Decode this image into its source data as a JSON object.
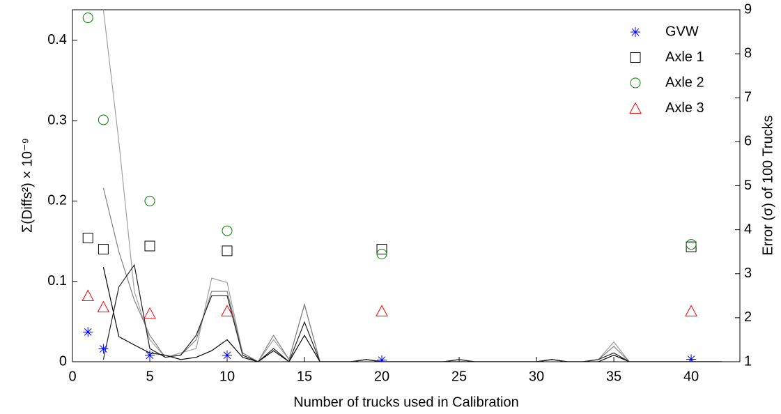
{
  "chart_data": {
    "type": "scatter-line",
    "xlabel": "Number of trucks used in Calibration",
    "ylabel": "Σ(Diffs²) × 10⁻⁹",
    "y2label": "Error (σ) of 100 Trucks",
    "xlim": [
      0,
      43.15
    ],
    "xticks": [
      0,
      5,
      10,
      15,
      20,
      25,
      30,
      35,
      40
    ],
    "ylim": [
      0,
      0.438
    ],
    "yticks": [
      0,
      0.1,
      0.2,
      0.3,
      0.4
    ],
    "y2lim": [
      1,
      9
    ],
    "y2ticks": [
      1,
      2,
      3,
      4,
      5,
      6,
      7,
      8,
      9
    ],
    "legend": "upper-right",
    "series": [
      {
        "name": "GVW",
        "color": "#0000ff",
        "marker": "asterisk",
        "x": [
          1,
          2,
          5,
          10,
          20,
          40
        ],
        "values": [
          0.037,
          0.016,
          0.008,
          0.008,
          0.002,
          0.003
        ]
      },
      {
        "name": "Axle 1",
        "color": "#000000",
        "marker": "square",
        "x": [
          1,
          2,
          5,
          10,
          20,
          40
        ],
        "values": [
          0.154,
          0.14,
          0.144,
          0.138,
          0.14,
          0.143
        ]
      },
      {
        "name": "Axle 2",
        "color": "#008000",
        "marker": "circle",
        "x": [
          1,
          2,
          5,
          10,
          20,
          40
        ],
        "values": [
          0.428,
          0.301,
          0.2,
          0.163,
          0.134,
          0.146
        ]
      },
      {
        "name": "Axle 3",
        "color": "#ff0000",
        "marker": "triangle",
        "x": [
          1,
          2,
          5,
          10,
          20,
          40
        ],
        "values": [
          0.082,
          0.068,
          0.06,
          0.063,
          0.063,
          0.063
        ]
      },
      {
        "color": "#a0a0a0",
        "axis": "y2",
        "x": [
          2,
          3,
          4,
          5,
          6,
          7,
          8,
          9,
          10,
          11,
          12,
          13,
          14,
          15,
          16,
          17,
          18,
          19,
          20,
          21,
          22,
          23,
          24,
          25,
          26,
          27,
          28,
          29,
          30,
          31,
          32,
          33,
          34,
          35,
          36,
          37,
          38,
          39,
          40,
          41,
          42
        ],
        "values": [
          9.0,
          6.0,
          2.6,
          1.5,
          1.1,
          1.2,
          1.3,
          2.9,
          2.8,
          1.2,
          1.0,
          1.5,
          1.05,
          2.3,
          1.0,
          1.0,
          1.0,
          1.05,
          1.0,
          1.0,
          1.0,
          1.0,
          1.0,
          1.05,
          1.0,
          1.0,
          1.0,
          1.0,
          1.0,
          1.05,
          1.0,
          1.0,
          1.05,
          1.45,
          1.0,
          1.0,
          1.0,
          1.0,
          1.0,
          1.0,
          1.0
        ]
      },
      {
        "color": "#808080",
        "axis": "y2",
        "x": [
          2,
          3,
          4,
          5,
          6,
          7,
          8,
          9,
          10,
          11,
          12,
          13,
          14,
          15,
          16,
          17,
          18,
          19,
          20,
          21,
          22,
          23,
          24,
          25,
          26,
          27,
          28,
          29,
          30,
          31,
          32,
          33,
          34,
          35,
          36,
          37,
          38,
          39,
          40,
          41,
          42
        ],
        "values": [
          4.95,
          3.5,
          2.4,
          1.6,
          1.1,
          1.15,
          1.5,
          2.6,
          2.6,
          1.2,
          1.0,
          1.6,
          1.05,
          2.3,
          1.0,
          1.0,
          1.0,
          1.05,
          1.0,
          1.0,
          1.0,
          1.0,
          1.0,
          1.05,
          1.0,
          1.0,
          1.0,
          1.0,
          1.0,
          1.05,
          1.0,
          1.0,
          1.05,
          1.35,
          1.0,
          1.0,
          1.0,
          1.0,
          1.0,
          1.0,
          1.0
        ]
      },
      {
        "color": "#000000",
        "axis": "y2",
        "x": [
          2,
          3,
          4,
          5,
          6,
          7,
          8,
          9,
          10,
          11,
          12,
          13,
          14,
          15,
          16,
          17,
          18,
          19,
          20,
          21,
          22,
          23,
          24,
          25,
          26,
          27,
          28,
          29,
          30,
          31,
          32,
          33,
          34,
          35,
          36,
          37,
          38,
          39,
          40,
          41,
          42
        ],
        "values": [
          3.15,
          1.57,
          1.38,
          1.2,
          1.15,
          1.05,
          1.1,
          1.25,
          1.5,
          1.1,
          1.0,
          1.25,
          1.0,
          1.6,
          1.0,
          1.0,
          1.0,
          1.05,
          1.0,
          1.0,
          1.0,
          1.0,
          1.0,
          1.0,
          1.0,
          1.0,
          1.0,
          1.0,
          1.0,
          1.05,
          1.0,
          1.0,
          1.0,
          1.15,
          1.0,
          1.0,
          1.0,
          1.0,
          1.0,
          1.0,
          1.0
        ]
      },
      {
        "color": "#202020",
        "axis": "y2",
        "x": [
          2,
          3,
          4,
          5,
          6,
          7,
          8,
          9,
          10,
          11,
          12,
          13,
          14,
          15,
          16,
          17,
          18,
          19,
          20,
          21,
          22,
          23,
          24,
          25,
          26,
          27,
          28,
          29,
          30,
          31,
          32,
          33,
          34,
          35,
          36,
          37,
          38,
          39,
          40,
          41,
          42
        ],
        "values": [
          1.05,
          2.7,
          3.2,
          1.3,
          1.1,
          1.15,
          1.6,
          2.5,
          2.5,
          1.15,
          1.0,
          1.3,
          1.0,
          1.9,
          1.0,
          1.0,
          1.0,
          1.05,
          1.0,
          1.0,
          1.0,
          1.0,
          1.0,
          1.05,
          1.0,
          1.0,
          1.0,
          1.0,
          1.0,
          1.05,
          1.0,
          1.0,
          1.05,
          1.2,
          1.0,
          1.0,
          1.0,
          1.0,
          1.0,
          1.0,
          1.0
        ]
      }
    ]
  }
}
